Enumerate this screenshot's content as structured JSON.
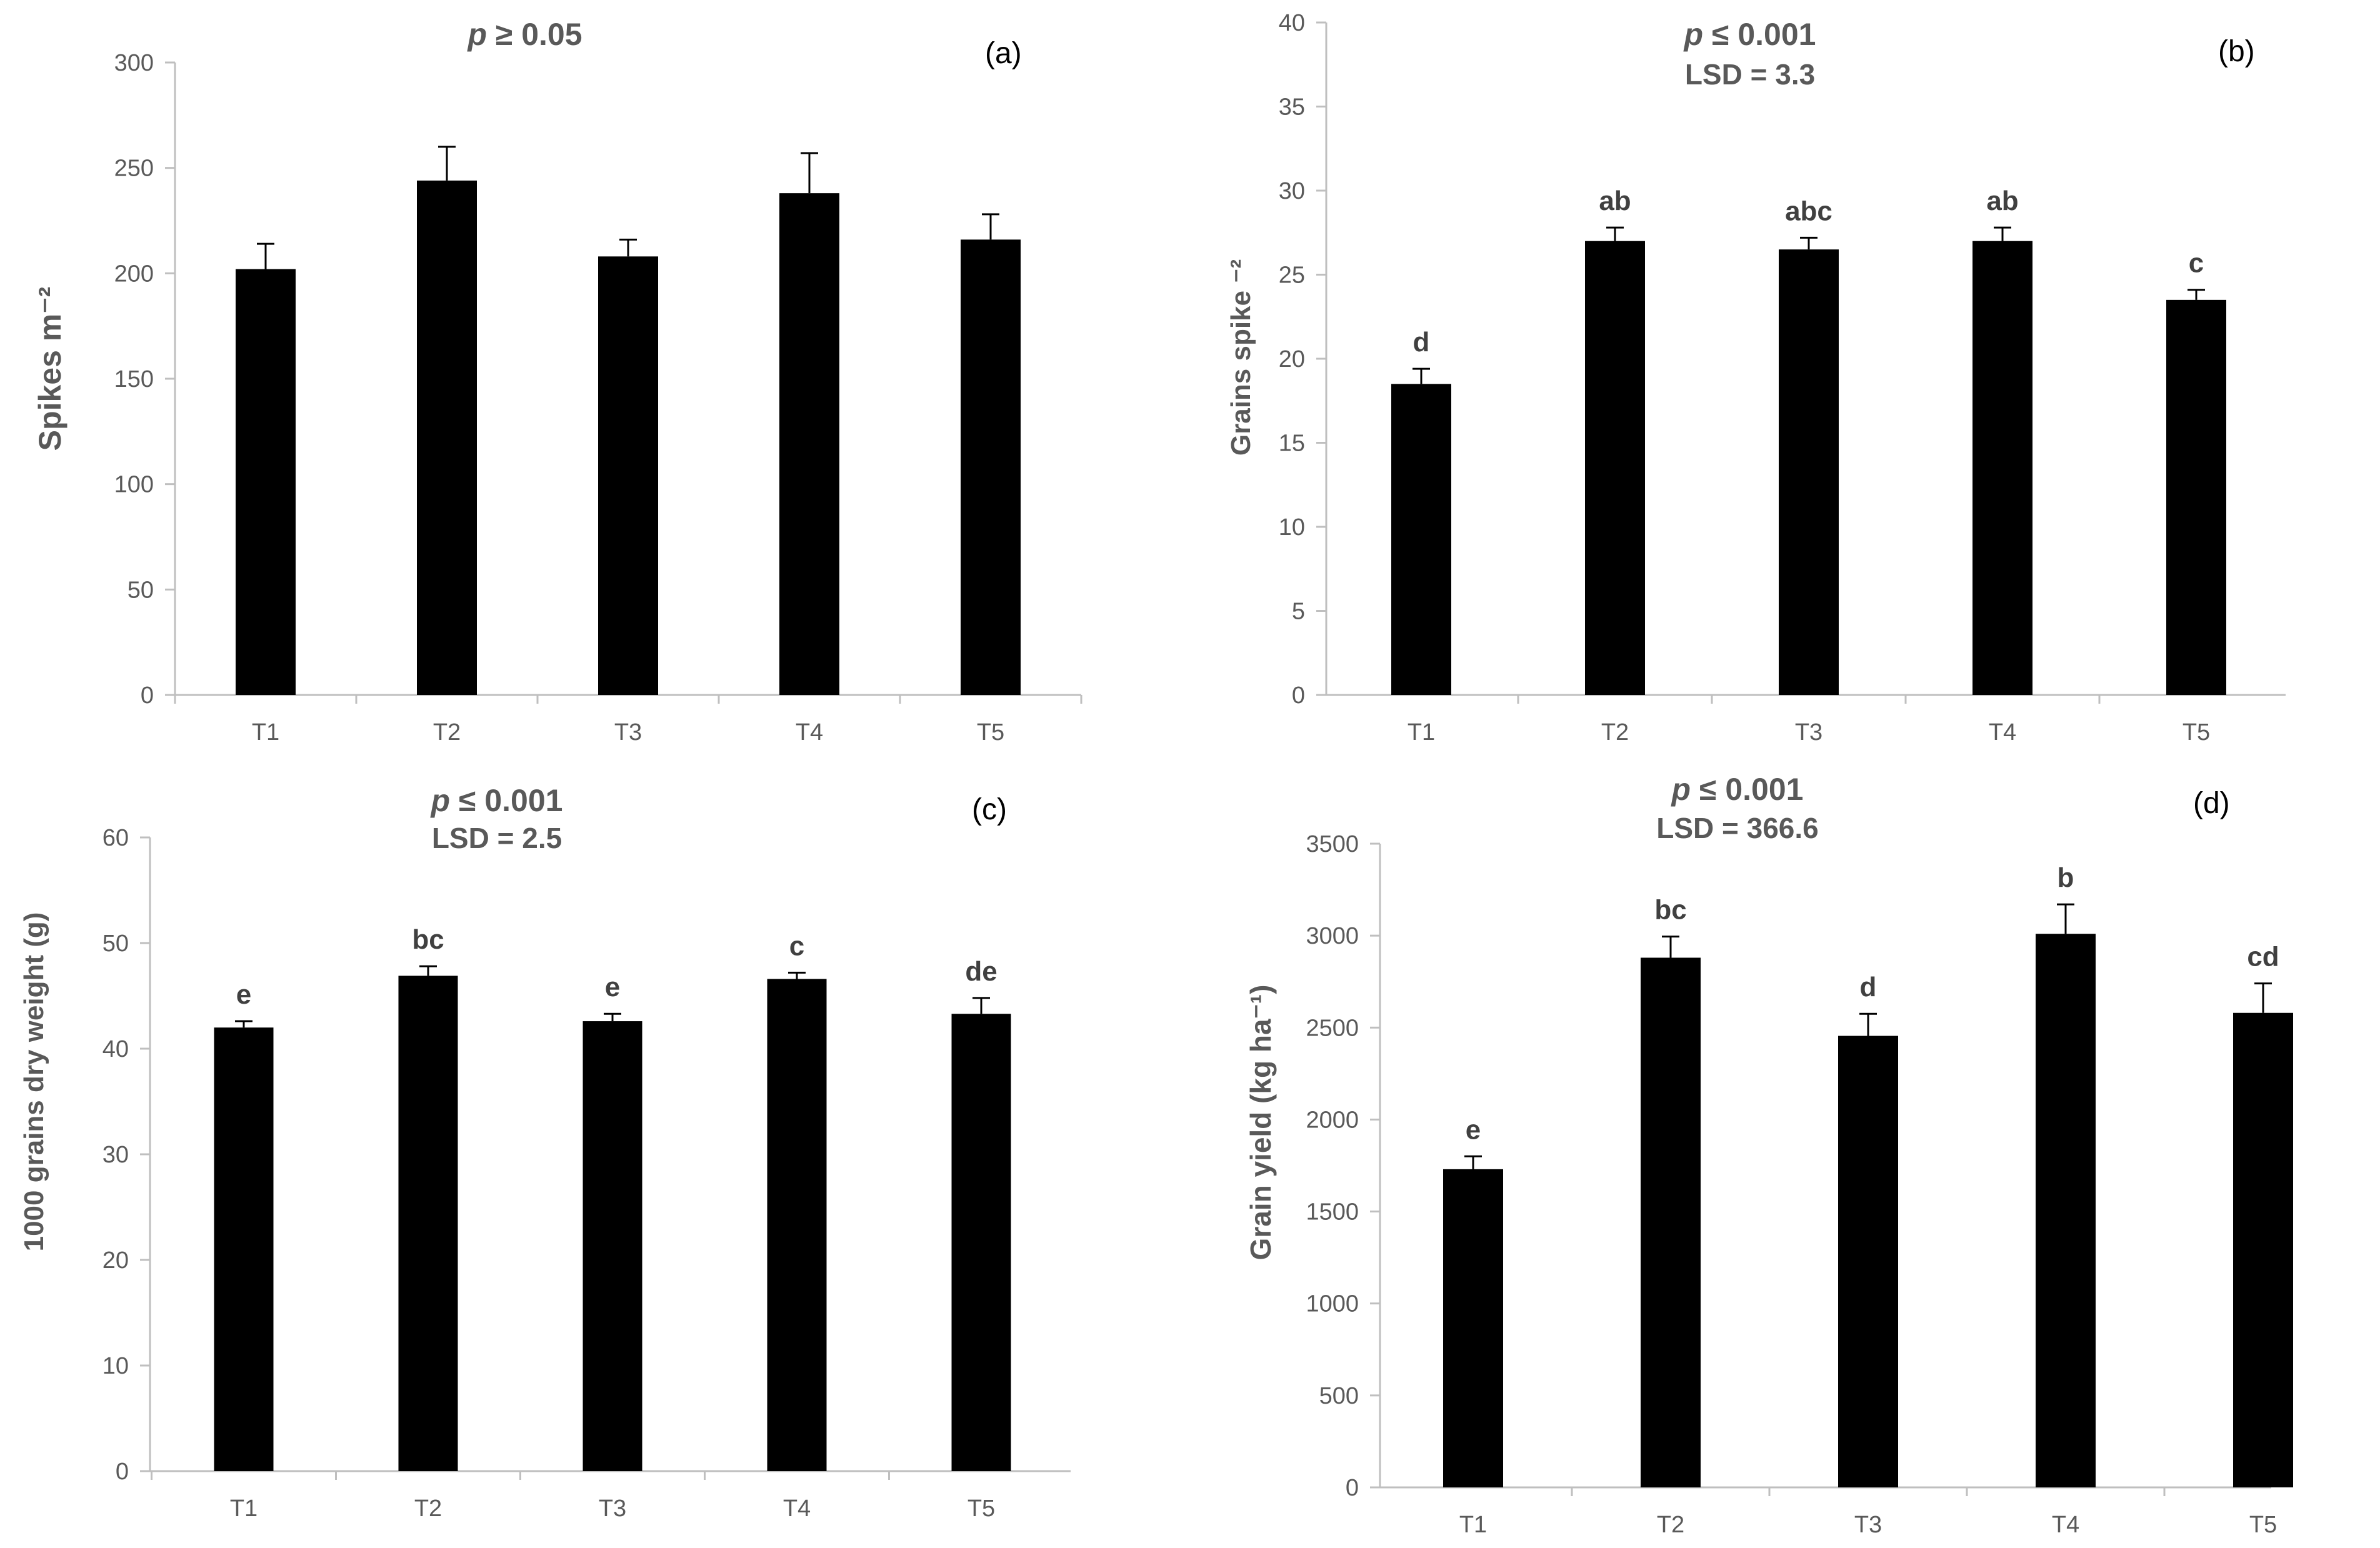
{
  "chart_data": [
    {
      "id": "a",
      "type": "bar",
      "panel_label": "(a)",
      "title_p": "p",
      "title_rest": " ≥ 0.05",
      "lsd_text": "",
      "ylabel": "Spikes m⁻²",
      "categories": [
        "T1",
        "T2",
        "T3",
        "T4",
        "T5"
      ],
      "values": [
        202,
        244,
        208,
        238,
        216
      ],
      "errors": [
        12,
        16,
        8,
        19,
        12
      ],
      "letters": [
        "",
        "",
        "",
        "",
        ""
      ],
      "ylim": [
        0,
        300
      ],
      "yticks": [
        0,
        50,
        100,
        150,
        200,
        250,
        300
      ],
      "bar_color": "#000000"
    },
    {
      "id": "b",
      "type": "bar",
      "panel_label": "(b)",
      "title_p": "p",
      "title_rest": " ≤ 0.001",
      "lsd_text": "LSD = 3.3",
      "ylabel": "Grains spike ⁻²",
      "categories": [
        "T1",
        "T2",
        "T3",
        "T4",
        "T5"
      ],
      "values": [
        18.5,
        27,
        26.5,
        27,
        23.5
      ],
      "errors": [
        0.9,
        0.8,
        0.7,
        0.8,
        0.6
      ],
      "letters": [
        "d",
        "ab",
        "abc",
        "ab",
        "c"
      ],
      "ylim": [
        0,
        40
      ],
      "yticks": [
        0,
        5,
        10,
        15,
        20,
        25,
        30,
        35,
        40
      ],
      "bar_color": "#000000"
    },
    {
      "id": "c",
      "type": "bar",
      "panel_label": "(c)",
      "title_p": "p",
      "title_rest": " ≤ 0.001",
      "lsd_text": "LSD = 2.5",
      "ylabel": "1000 grains dry weight (g)",
      "categories": [
        "T1",
        "T2",
        "T3",
        "T4",
        "T5"
      ],
      "values": [
        42,
        46.9,
        42.6,
        46.6,
        43.3
      ],
      "errors": [
        0.6,
        0.9,
        0.7,
        0.6,
        1.5
      ],
      "letters": [
        "e",
        "bc",
        "e",
        "c",
        "de"
      ],
      "ylim": [
        0,
        60
      ],
      "yticks": [
        0,
        10,
        20,
        30,
        40,
        50,
        60
      ],
      "bar_color": "#000000"
    },
    {
      "id": "d",
      "type": "bar",
      "panel_label": "(d)",
      "title_p": "p",
      "title_rest": " ≤ 0.001",
      "lsd_text": "LSD = 366.6",
      "ylabel": "Grain yield (kg ha⁻¹)",
      "categories": [
        "T1",
        "T2",
        "T3",
        "T4",
        "T5"
      ],
      "values": [
        1730,
        2880,
        2455,
        3010,
        2580
      ],
      "errors": [
        70,
        115,
        120,
        160,
        160
      ],
      "letters": [
        "e",
        "bc",
        "d",
        "b",
        "cd"
      ],
      "ylim": [
        0,
        3500
      ],
      "yticks": [
        0,
        500,
        1000,
        1500,
        2000,
        2500,
        3000,
        3500
      ],
      "bar_color": "#000000"
    }
  ]
}
